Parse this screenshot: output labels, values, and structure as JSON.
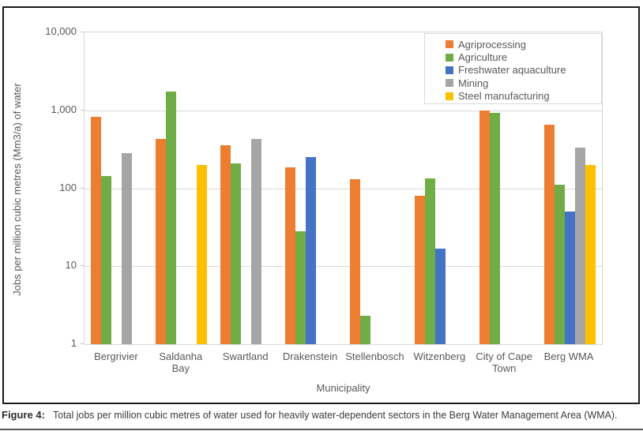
{
  "figure": {
    "caption_label": "Figure 4:",
    "caption_text": "Total jobs per million cubic metres of water used for heavily water-dependent sectors in the Berg Water Management Area (WMA)."
  },
  "chart_data": {
    "type": "bar",
    "y_scale": "log",
    "title": "",
    "xlabel": "Municipality",
    "ylabel": "Jobs per million cubic metres  (Mm3/a) of water",
    "ylim": [
      1,
      10000
    ],
    "grid": true,
    "legend_position": "top-right",
    "grid_color": "#d9d9d9",
    "axis_text_color": "#595959",
    "yticks": [
      {
        "label": "10,000",
        "value": 10000
      },
      {
        "label": "1,000",
        "value": 1000
      },
      {
        "label": "100",
        "value": 100
      },
      {
        "label": "10",
        "value": 10
      },
      {
        "label": "1",
        "value": 1
      }
    ],
    "categories": [
      {
        "label": "Bergrivier",
        "lines": [
          "Bergrivier"
        ]
      },
      {
        "label": "Saldanha Bay",
        "lines": [
          "Saldanha",
          "Bay"
        ]
      },
      {
        "label": "Swartland",
        "lines": [
          "Swartland"
        ]
      },
      {
        "label": "Drakenstein",
        "lines": [
          "Drakenstein"
        ]
      },
      {
        "label": "Stellenbosch",
        "lines": [
          "Stellenbosch"
        ]
      },
      {
        "label": "Witzenberg",
        "lines": [
          "Witzenberg"
        ]
      },
      {
        "label": "City of Cape Town",
        "lines": [
          "City of Cape",
          "Town"
        ]
      },
      {
        "label": "Berg WMA",
        "lines": [
          "Berg WMA"
        ]
      }
    ],
    "series": [
      {
        "name": "Agriprocessing",
        "color": "#ED7D31",
        "values": [
          830,
          430,
          360,
          185,
          130,
          80,
          1000,
          650
        ]
      },
      {
        "name": "Agriculture",
        "color": "#70AD47",
        "values": [
          145,
          1750,
          210,
          28,
          2.3,
          135,
          920,
          110
        ]
      },
      {
        "name": "Freshwater aquaculture",
        "color": "#4472C4",
        "values": [
          null,
          null,
          null,
          250,
          null,
          17,
          null,
          50
        ]
      },
      {
        "name": "Mining",
        "color": "#A5A5A5",
        "values": [
          285,
          null,
          425,
          null,
          null,
          null,
          null,
          330
        ]
      },
      {
        "name": "Steel manufacturing",
        "color": "#FFC000",
        "values": [
          null,
          200,
          null,
          null,
          null,
          null,
          null,
          200
        ]
      }
    ]
  }
}
